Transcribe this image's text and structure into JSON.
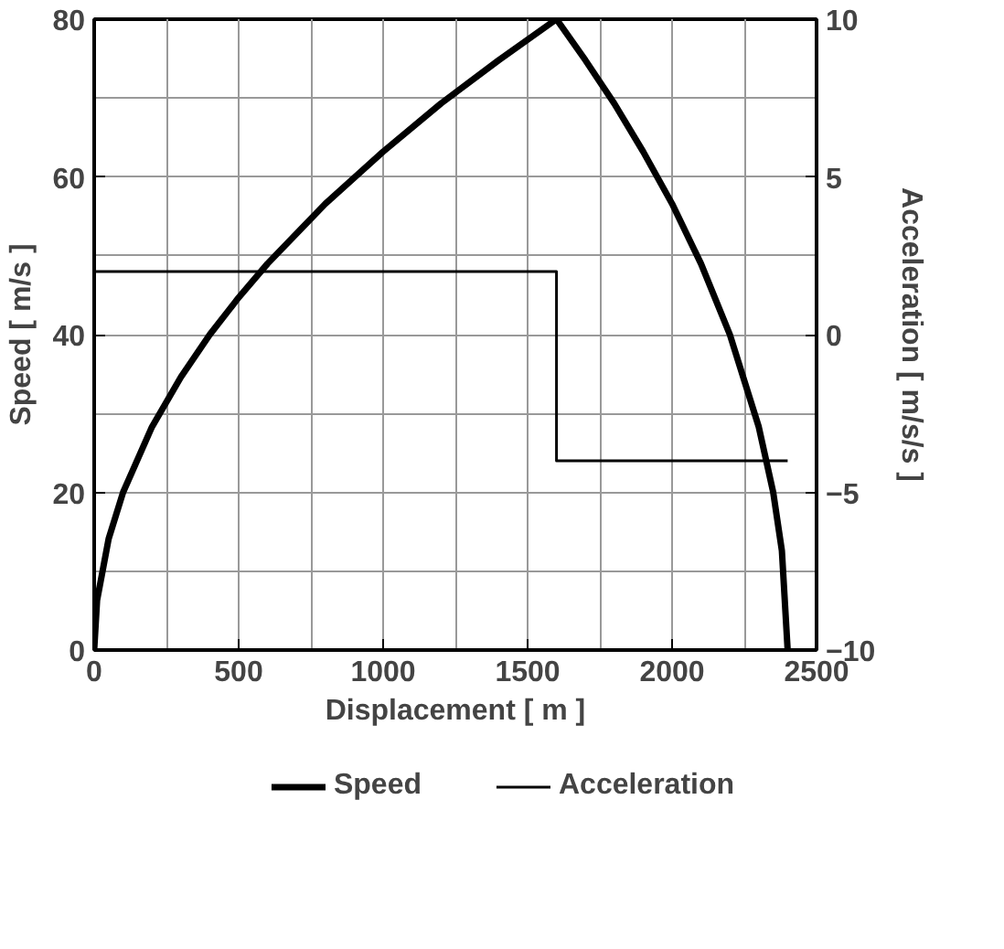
{
  "chart_data": {
    "type": "line",
    "xlabel": "Displacement [ m ]",
    "ylabel": "Speed [ m/s ]",
    "y2label": "Acceleration [ m/s/s ]",
    "xlim": [
      0,
      2500
    ],
    "xticks": [
      0,
      500,
      1000,
      1500,
      2000,
      2500
    ],
    "ylim": [
      0,
      80
    ],
    "yticks": [
      0,
      20,
      40,
      60,
      80
    ],
    "y2lim": [
      -10,
      10
    ],
    "y2ticks": [
      -10,
      -5,
      0,
      5,
      10
    ],
    "grid": true,
    "legend": "bottom",
    "marker": "none",
    "line_style": "solid",
    "series": [
      {
        "name": "Speed",
        "color": "#000000",
        "x": [
          0,
          10,
          50,
          100,
          200,
          300,
          400,
          500,
          600,
          800,
          1000,
          1200,
          1400,
          1600,
          1700,
          1800,
          1900,
          2000,
          2100,
          2200,
          2300,
          2350,
          2380,
          2400
        ],
        "values": [
          0,
          6.3,
          14.1,
          20,
          28.3,
          34.6,
          40,
          44.7,
          49,
          56.6,
          63.2,
          69.3,
          74.8,
          80,
          74.8,
          69.3,
          63.2,
          56.6,
          49,
          40,
          28.3,
          20,
          12.6,
          0
        ]
      },
      {
        "name": "Acceleration",
        "color": "#000000",
        "axis": "y2",
        "x": [
          0,
          1600,
          1600,
          2400
        ],
        "values": [
          2,
          2,
          -4,
          -4
        ]
      }
    ]
  }
}
